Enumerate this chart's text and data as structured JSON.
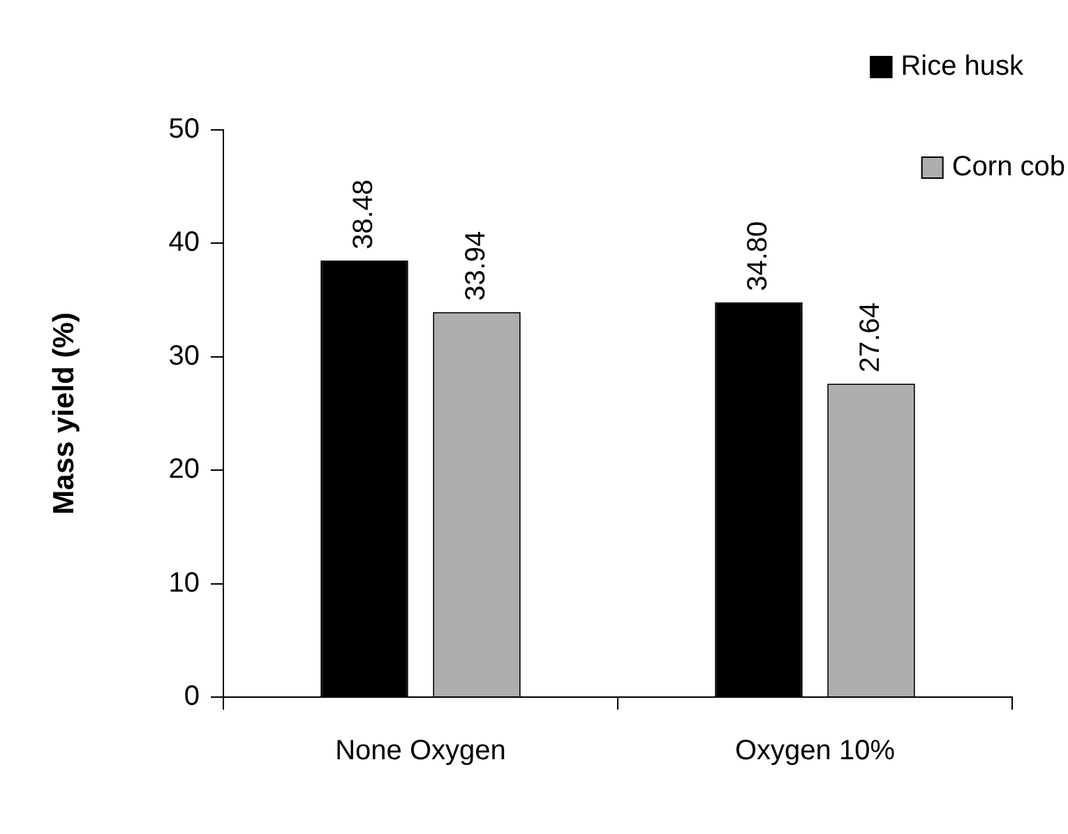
{
  "chart_data": {
    "type": "bar",
    "ylabel": "Mass yield (%)",
    "categories": [
      "None Oxygen",
      "Oxygen 10%"
    ],
    "series": [
      {
        "name": "Rice husk",
        "color": "#000000",
        "values": [
          38.48,
          34.8
        ],
        "value_labels": [
          "38.48",
          "34.80"
        ]
      },
      {
        "name": "Corn cob",
        "color": "#b0adad",
        "values": [
          33.94,
          27.64
        ],
        "value_labels": [
          "33.94",
          "27.64"
        ]
      }
    ],
    "ylim": [
      0,
      50
    ],
    "yticks": [
      0,
      10,
      20,
      30,
      40,
      50
    ],
    "grid": false,
    "legend": "top right"
  }
}
